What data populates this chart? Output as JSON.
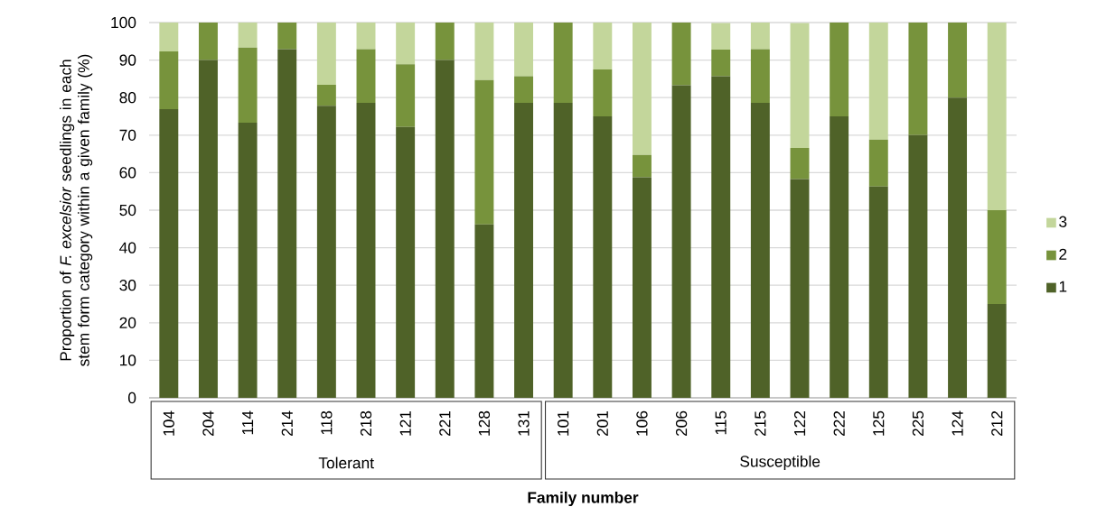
{
  "chart_data": {
    "type": "bar",
    "stacked": true,
    "xlabel": "**Family number**",
    "ylabel": "Proportion of *F. excelsior* seedlings in each stem form category within a given family (%)",
    "categories": [
      "104",
      "204",
      "114",
      "214",
      "118",
      "218",
      "121",
      "221",
      "128",
      "131",
      "101",
      "201",
      "106",
      "206",
      "115",
      "215",
      "122",
      "222",
      "125",
      "225",
      "124",
      "212"
    ],
    "series": [
      {
        "name": "1",
        "color": "#4f6228",
        "values": [
          76.9,
          90,
          73.3,
          92.9,
          77.8,
          78.6,
          72.2,
          90,
          46.2,
          78.6,
          78.6,
          75,
          58.8,
          83.3,
          85.7,
          78.6,
          58.3,
          75,
          56.3,
          70,
          80,
          25
        ]
      },
      {
        "name": "2",
        "color": "#77933c",
        "values": [
          15.4,
          10,
          20,
          7.1,
          5.6,
          14.3,
          16.7,
          10,
          38.5,
          7.1,
          21.4,
          12.5,
          5.9,
          16.7,
          7.1,
          14.3,
          8.3,
          25,
          12.5,
          30,
          20,
          25
        ]
      },
      {
        "name": "3",
        "color": "#c3d69b",
        "values": [
          7.7,
          0,
          6.7,
          0,
          16.6,
          7.1,
          11.1,
          0,
          15.3,
          14.3,
          0,
          12.5,
          35.3,
          0,
          7.1,
          7.1,
          33.3,
          0,
          31.2,
          0,
          0,
          50
        ]
      }
    ],
    "ylim": [
      0,
      100
    ],
    "yticks": [
      0,
      10,
      20,
      30,
      40,
      50,
      60,
      70,
      80,
      90,
      100
    ],
    "grid": "y",
    "legend": "right",
    "annotations": [
      "Tolerant",
      "Susceptible"
    ]
  }
}
